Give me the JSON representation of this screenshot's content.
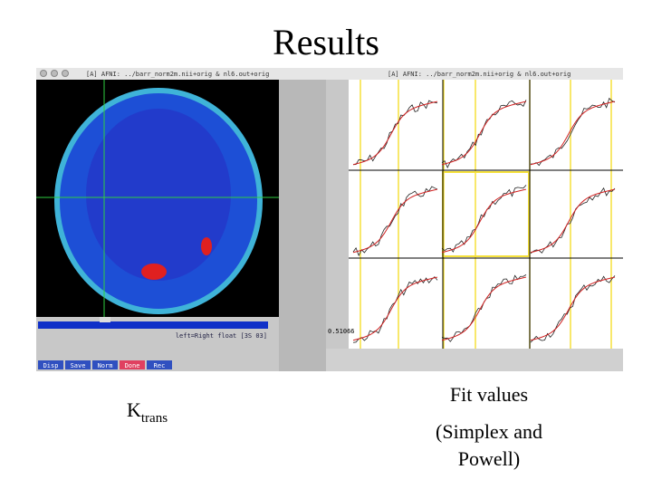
{
  "title": "Results",
  "left_window": {
    "title": "[A] AFNI: ../barr_norm2m.nii+orig & nl6.out+orig",
    "status": "left=Right float [3S 03]",
    "buttons": [
      "Disp",
      "Save",
      "Norm",
      "Done",
      "Rec"
    ]
  },
  "right_window": {
    "title": "[A] AFNI: ../barr_norm2m.nii+orig & nl6.out+orig",
    "scale_label": "0.51066"
  },
  "captions": {
    "left": {
      "main": "K",
      "subscript": "trans"
    },
    "right": {
      "line1": "Fit values",
      "line2": "(Simplex and",
      "line3": "Powell)"
    }
  }
}
